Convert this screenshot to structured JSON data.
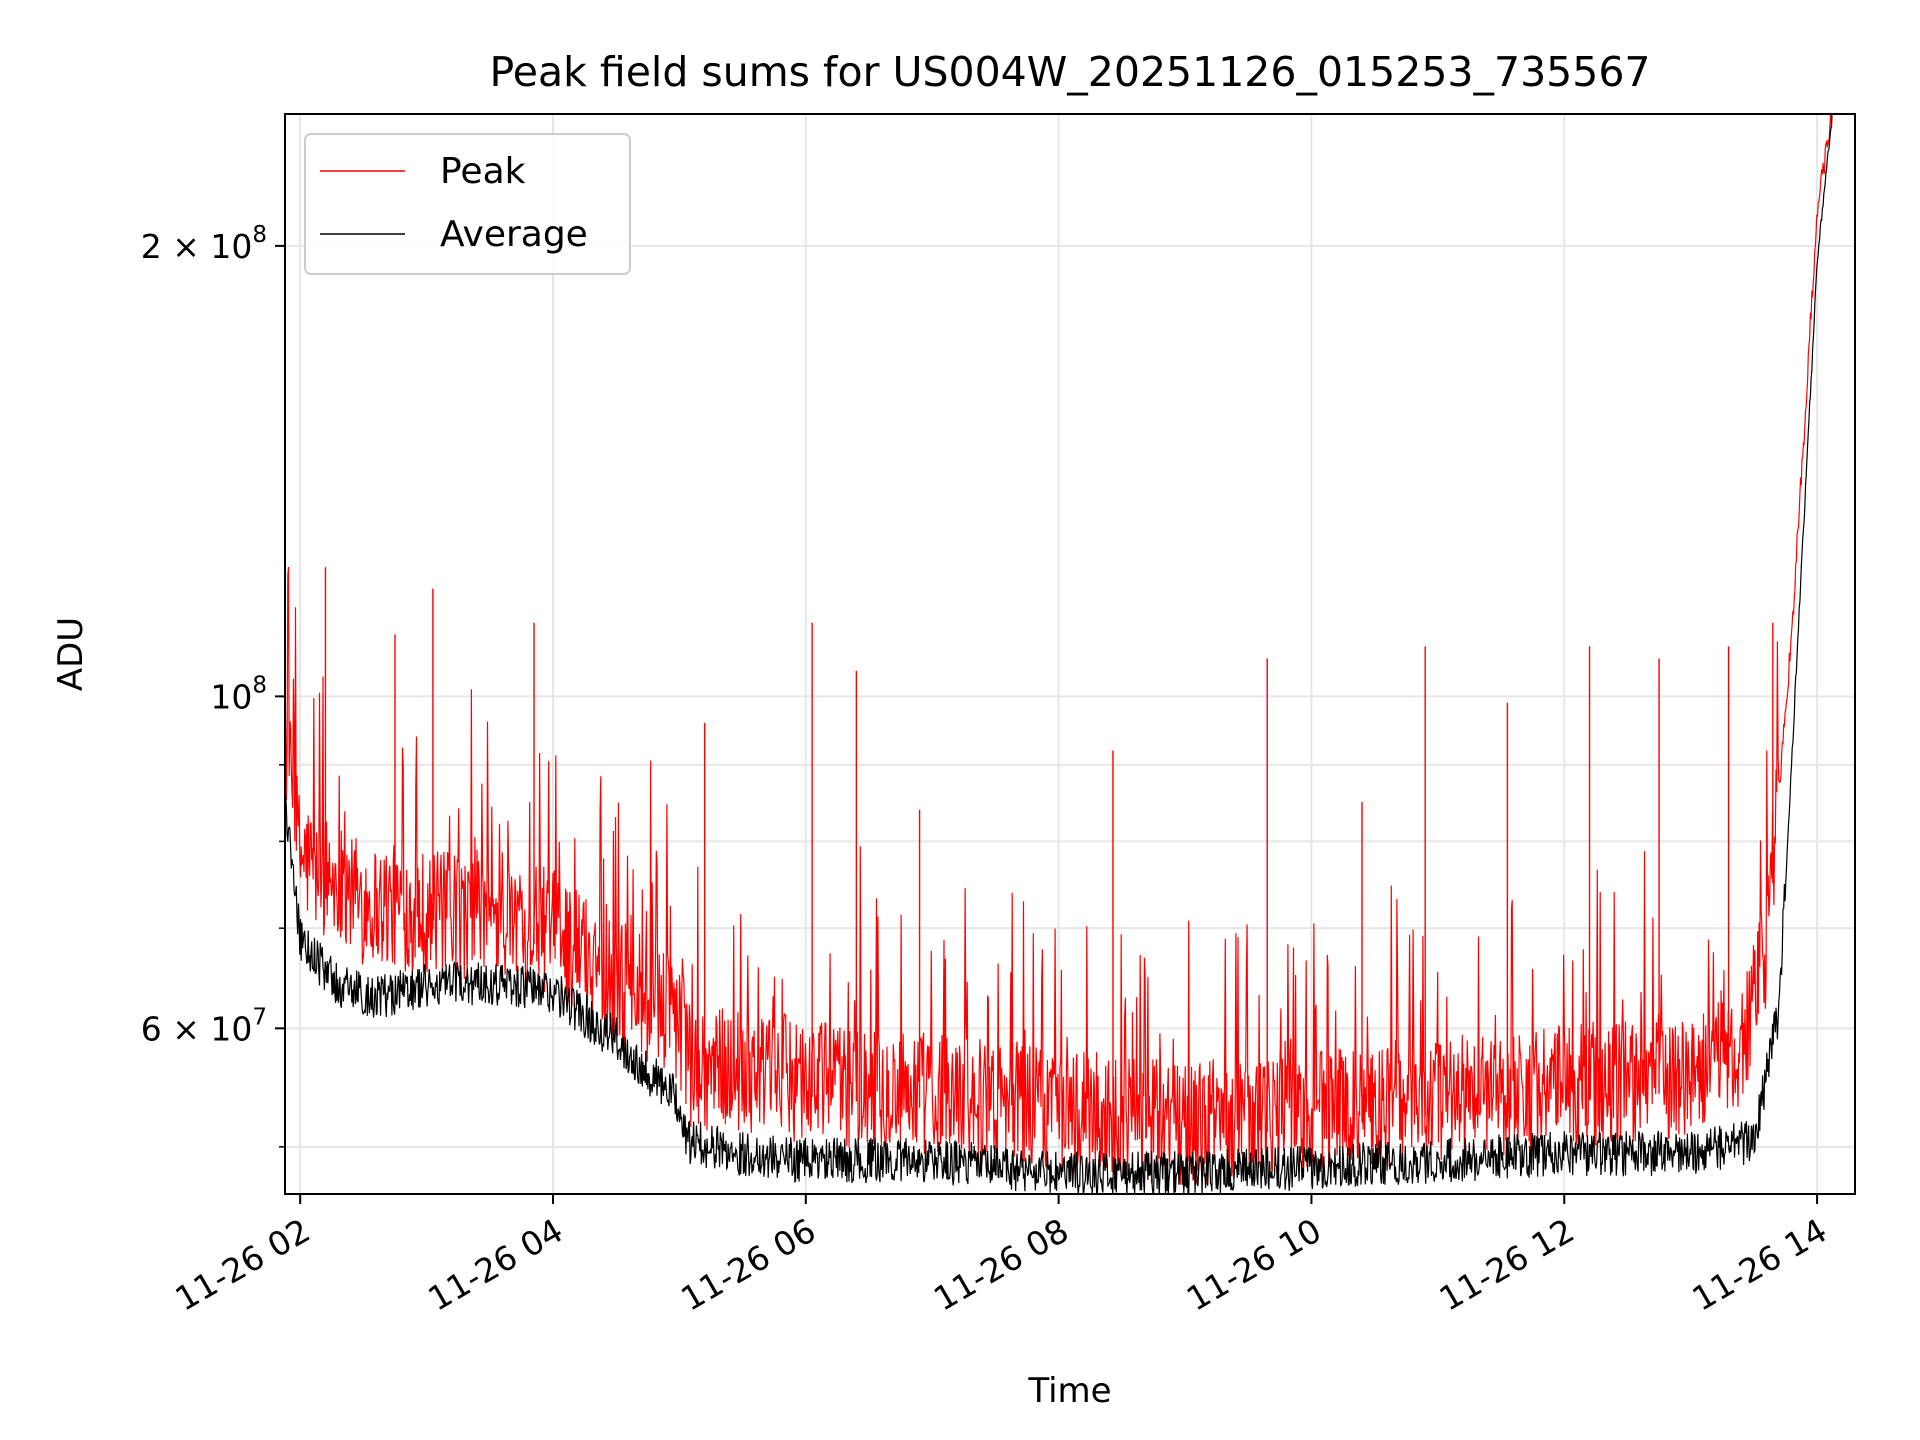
{
  "chart_data": {
    "type": "line",
    "title": "Peak field sums for US004W_20251126_015253_735567",
    "xlabel": "Time",
    "ylabel": "ADU",
    "yscale": "log",
    "ylim": [
      46500000,
      245000000
    ],
    "xlim_hours": [
      1.88,
      14.3
    ],
    "grid": true,
    "legend_position": "upper-left",
    "x_ticks": [
      {
        "hour": 2,
        "label": "11-26 02"
      },
      {
        "hour": 4,
        "label": "11-26 04"
      },
      {
        "hour": 6,
        "label": "11-26 06"
      },
      {
        "hour": 8,
        "label": "11-26 08"
      },
      {
        "hour": 10,
        "label": "11-26 10"
      },
      {
        "hour": 12,
        "label": "11-26 12"
      },
      {
        "hour": 14,
        "label": "11-26 14"
      }
    ],
    "y_ticks_major": [
      {
        "value": 60000000,
        "mant": "6",
        "exp": "7"
      },
      {
        "value": 100000000,
        "mant": "",
        "exp": "8"
      },
      {
        "value": 200000000,
        "mant": "2",
        "exp": "8"
      }
    ],
    "y_ticks_minor": [
      50000000,
      70000000,
      80000000,
      90000000
    ],
    "series": [
      {
        "name": "Peak",
        "color": "#ff0000",
        "baseline_points": [
          {
            "hour": 1.88,
            "value": 91000000
          },
          {
            "hour": 2.0,
            "value": 76000000
          },
          {
            "hour": 2.5,
            "value": 71000000
          },
          {
            "hour": 3.0,
            "value": 70000000
          },
          {
            "hour": 3.5,
            "value": 69000000
          },
          {
            "hour": 4.0,
            "value": 68000000
          },
          {
            "hour": 4.5,
            "value": 63000000
          },
          {
            "hour": 5.0,
            "value": 59000000
          },
          {
            "hour": 5.1,
            "value": 55000000
          },
          {
            "hour": 5.5,
            "value": 55000000
          },
          {
            "hour": 6.0,
            "value": 54000000
          },
          {
            "hour": 7.0,
            "value": 53000000
          },
          {
            "hour": 8.0,
            "value": 51500000
          },
          {
            "hour": 9.0,
            "value": 50500000
          },
          {
            "hour": 10.0,
            "value": 51500000
          },
          {
            "hour": 11.0,
            "value": 52500000
          },
          {
            "hour": 12.0,
            "value": 53500000
          },
          {
            "hour": 13.0,
            "value": 54500000
          },
          {
            "hour": 13.4,
            "value": 56000000
          },
          {
            "hour": 13.6,
            "value": 66000000
          },
          {
            "hour": 13.8,
            "value": 110000000
          },
          {
            "hour": 13.9,
            "value": 150000000
          },
          {
            "hour": 14.0,
            "value": 210000000
          },
          {
            "hour": 14.12,
            "value": 245000000
          }
        ],
        "spikes": [
          {
            "hour": 2.2,
            "value": 122000000
          },
          {
            "hour": 2.75,
            "value": 110000000
          },
          {
            "hour": 3.05,
            "value": 118000000
          },
          {
            "hour": 3.85,
            "value": 112000000
          },
          {
            "hour": 5.2,
            "value": 96000000
          },
          {
            "hour": 6.05,
            "value": 112000000
          },
          {
            "hour": 6.4,
            "value": 104000000
          },
          {
            "hour": 6.9,
            "value": 84000000
          },
          {
            "hour": 8.43,
            "value": 92000000
          },
          {
            "hour": 9.65,
            "value": 106000000
          },
          {
            "hour": 10.4,
            "value": 85000000
          },
          {
            "hour": 10.9,
            "value": 108000000
          },
          {
            "hour": 11.55,
            "value": 99000000
          },
          {
            "hour": 12.2,
            "value": 108000000
          },
          {
            "hour": 12.75,
            "value": 106000000
          },
          {
            "hour": 13.3,
            "value": 108000000
          },
          {
            "hour": 13.65,
            "value": 112000000
          }
        ]
      },
      {
        "name": "Average",
        "color": "#000000",
        "baseline_points": [
          {
            "hour": 1.88,
            "value": 85000000
          },
          {
            "hour": 2.0,
            "value": 69000000
          },
          {
            "hour": 2.3,
            "value": 64000000
          },
          {
            "hour": 2.6,
            "value": 63000000
          },
          {
            "hour": 3.0,
            "value": 64000000
          },
          {
            "hour": 3.5,
            "value": 64500000
          },
          {
            "hour": 4.0,
            "value": 63500000
          },
          {
            "hour": 4.5,
            "value": 59000000
          },
          {
            "hour": 5.0,
            "value": 53500000
          },
          {
            "hour": 5.05,
            "value": 50500000
          },
          {
            "hour": 5.5,
            "value": 49500000
          },
          {
            "hour": 6.0,
            "value": 49000000
          },
          {
            "hour": 7.0,
            "value": 49000000
          },
          {
            "hour": 8.0,
            "value": 48000000
          },
          {
            "hour": 9.0,
            "value": 48000000
          },
          {
            "hour": 10.0,
            "value": 48500000
          },
          {
            "hour": 11.0,
            "value": 49000000
          },
          {
            "hour": 12.0,
            "value": 49500000
          },
          {
            "hour": 13.0,
            "value": 49500000
          },
          {
            "hour": 13.5,
            "value": 50500000
          },
          {
            "hour": 13.7,
            "value": 62000000
          },
          {
            "hour": 13.85,
            "value": 110000000
          },
          {
            "hour": 14.0,
            "value": 195000000
          },
          {
            "hour": 14.12,
            "value": 245000000
          }
        ]
      }
    ]
  }
}
